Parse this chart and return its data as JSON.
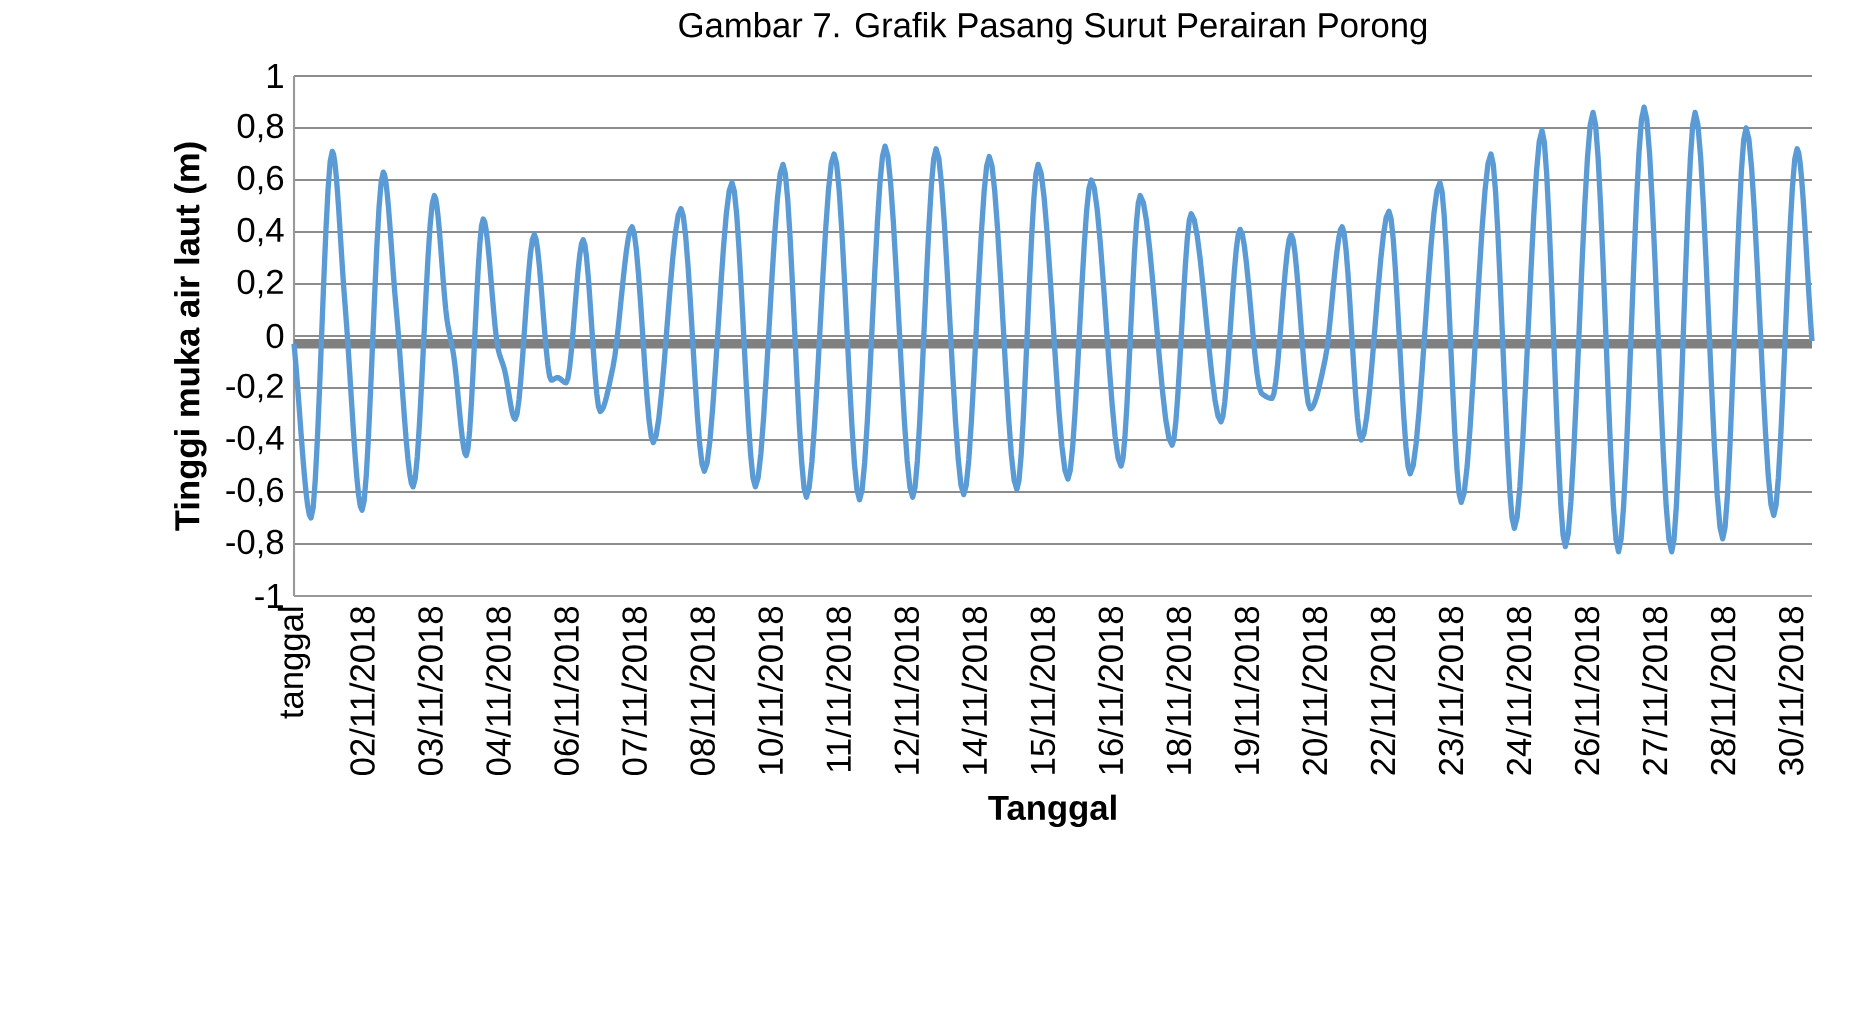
{
  "chart_data": {
    "type": "line",
    "title": "Gambar 7. Grafik Pasang Surut Perairan Porong",
    "xlabel": "Tanggal",
    "ylabel": "Tinggi  muka air laut (m)",
    "xlim": [
      "2018-10-31T23:00",
      "2018-11-30T17:00"
    ],
    "ylim": [
      -1,
      1
    ],
    "xticks": [
      {
        "value": "2018-10-31T23:00",
        "label": "tanggal"
      },
      {
        "value": "2018-11-02T07:00",
        "label": "02/11/2018"
      },
      {
        "value": "2018-11-03T15:00",
        "label": "03/11/2018"
      },
      {
        "value": "2018-11-04T23:00",
        "label": "04/11/2018"
      },
      {
        "value": "2018-11-06T07:00",
        "label": "06/11/2018"
      },
      {
        "value": "2018-11-07T15:00",
        "label": "07/11/2018"
      },
      {
        "value": "2018-11-08T23:00",
        "label": "08/11/2018"
      },
      {
        "value": "2018-11-10T07:00",
        "label": "10/11/2018"
      },
      {
        "value": "2018-11-11T15:00",
        "label": "11/11/2018"
      },
      {
        "value": "2018-11-12T23:00",
        "label": "12/11/2018"
      },
      {
        "value": "2018-11-14T07:00",
        "label": "14/11/2018"
      },
      {
        "value": "2018-11-15T15:00",
        "label": "15/11/2018"
      },
      {
        "value": "2018-11-16T23:00",
        "label": "16/11/2018"
      },
      {
        "value": "2018-11-18T07:00",
        "label": "18/11/2018"
      },
      {
        "value": "2018-11-19T15:00",
        "label": "19/11/2018"
      },
      {
        "value": "2018-11-20T23:00",
        "label": "20/11/2018"
      },
      {
        "value": "2018-11-22T07:00",
        "label": "22/11/2018"
      },
      {
        "value": "2018-11-23T15:00",
        "label": "23/11/2018"
      },
      {
        "value": "2018-11-24T23:00",
        "label": "24/11/2018"
      },
      {
        "value": "2018-11-26T07:00",
        "label": "26/11/2018"
      },
      {
        "value": "2018-11-27T15:00",
        "label": "27/11/2018"
      },
      {
        "value": "2018-11-28T23:00",
        "label": "28/11/2018"
      },
      {
        "value": "2018-11-30T07:00",
        "label": "30/11/2018"
      }
    ],
    "yticks": [
      -1,
      {
        "value": -0.8,
        "label": "-0,8"
      },
      {
        "value": -0.6,
        "label": "-0,6"
      },
      {
        "value": -0.4,
        "label": "-0,4"
      },
      {
        "value": -0.2,
        "label": "-0,2"
      },
      0,
      {
        "value": 0.2,
        "label": "0,2"
      },
      {
        "value": 0.4,
        "label": "0,4"
      },
      {
        "value": 0.6,
        "label": "0,6"
      },
      {
        "value": 0.8,
        "label": "0,8"
      },
      1
    ],
    "grid": "y",
    "ref_lines": [
      {
        "axis": "y",
        "value": -0.03,
        "color": "#808080"
      }
    ],
    "series": [
      {
        "color": "#5b9bd5",
        "x": [
          "2018-10-31T23:00",
          "2018-11-01T07:00",
          "2018-11-01T17:00",
          "2018-11-01T23:00",
          "2018-11-02T07:00",
          "2018-11-02T17:00",
          "2018-11-02T23:00",
          "2018-11-03T07:00",
          "2018-11-03T17:00",
          "2018-11-03T23:00",
          "2018-11-04T02:00",
          "2018-11-04T08:00",
          "2018-11-04T16:00",
          "2018-11-04T23:00",
          "2018-11-05T02:00",
          "2018-11-05T07:00",
          "2018-11-05T16:00",
          "2018-11-06T00:00",
          "2018-11-06T03:00",
          "2018-11-06T07:00",
          "2018-11-06T15:00",
          "2018-11-06T23:00",
          "2018-11-07T05:00",
          "2018-11-07T14:00",
          "2018-11-08T00:00",
          "2018-11-08T13:00",
          "2018-11-09T00:00",
          "2018-11-09T13:00",
          "2018-11-10T00:00",
          "2018-11-10T13:00",
          "2018-11-11T00:00",
          "2018-11-11T13:00",
          "2018-11-12T01:00",
          "2018-11-12T13:00",
          "2018-11-13T02:00",
          "2018-11-13T13:00",
          "2018-11-14T02:00",
          "2018-11-14T14:00",
          "2018-11-15T03:00",
          "2018-11-15T13:00",
          "2018-11-16T03:00",
          "2018-11-16T14:00",
          "2018-11-17T04:00",
          "2018-11-17T13:00",
          "2018-11-18T04:00",
          "2018-11-18T13:00",
          "2018-11-19T03:00",
          "2018-11-19T12:00",
          "2018-11-19T22:00",
          "2018-11-20T03:00",
          "2018-11-20T12:00",
          "2018-11-20T21:00",
          "2018-11-21T04:00",
          "2018-11-21T12:00",
          "2018-11-21T21:00",
          "2018-11-22T10:00",
          "2018-11-22T20:00",
          "2018-11-23T10:00",
          "2018-11-23T20:00",
          "2018-11-24T10:00",
          "2018-11-24T21:00",
          "2018-11-25T10:00",
          "2018-11-25T21:00",
          "2018-11-26T10:00",
          "2018-11-26T22:00",
          "2018-11-27T10:00",
          "2018-11-27T23:00",
          "2018-11-28T10:00",
          "2018-11-28T23:00",
          "2018-11-29T10:00",
          "2018-11-29T23:00",
          "2018-11-30T10:00",
          "2018-11-30T17:00"
        ],
        "values": [
          -0.03,
          -0.7,
          0.71,
          0.12,
          -0.67,
          0.63,
          0.11,
          -0.58,
          0.54,
          0.06,
          -0.07,
          -0.46,
          0.45,
          -0.05,
          -0.13,
          -0.32,
          0.39,
          -0.17,
          -0.16,
          -0.18,
          0.37,
          -0.29,
          -0.12,
          0.42,
          -0.41,
          0.49,
          -0.52,
          0.59,
          -0.58,
          0.66,
          -0.62,
          0.7,
          -0.63,
          0.73,
          -0.62,
          0.72,
          -0.61,
          0.69,
          -0.59,
          0.66,
          -0.55,
          0.6,
          -0.5,
          0.54,
          -0.42,
          0.47,
          -0.33,
          0.41,
          -0.22,
          -0.24,
          0.39,
          -0.28,
          -0.09,
          0.42,
          -0.4,
          0.48,
          -0.53,
          0.59,
          -0.64,
          0.7,
          -0.74,
          0.79,
          -0.81,
          0.86,
          -0.83,
          0.88,
          -0.83,
          0.86,
          -0.78,
          0.8,
          -0.69,
          0.72,
          -0.02
        ]
      }
    ]
  }
}
